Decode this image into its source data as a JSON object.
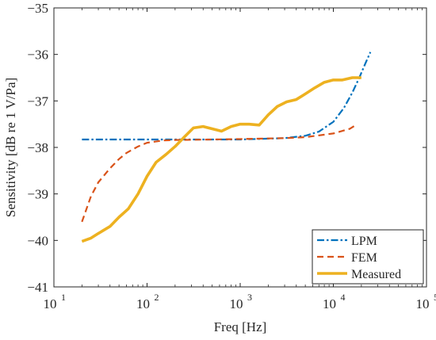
{
  "chart_data": {
    "type": "line",
    "xlabel": "Freq [Hz]",
    "ylabel": "Sensitivity [dB re 1 V/Pa]",
    "xscale": "log",
    "xlim": [
      10,
      100000
    ],
    "ylim": [
      -41,
      -35
    ],
    "x_ticks": [
      {
        "value": 10,
        "base": "10",
        "exp": "1"
      },
      {
        "value": 100,
        "base": "10",
        "exp": "2"
      },
      {
        "value": 1000,
        "base": "10",
        "exp": "3"
      },
      {
        "value": 10000,
        "base": "10",
        "exp": "4"
      },
      {
        "value": 100000,
        "base": "10",
        "exp": "5"
      }
    ],
    "y_ticks": [
      {
        "value": -41,
        "label": "−41"
      },
      {
        "value": -40,
        "label": "−40"
      },
      {
        "value": -39,
        "label": "−39"
      },
      {
        "value": -38,
        "label": "−38"
      },
      {
        "value": -37,
        "label": "−37"
      },
      {
        "value": -36,
        "label": "−36"
      },
      {
        "value": -35,
        "label": "−35"
      }
    ],
    "grid": false,
    "legend_position": "bottom-right",
    "series": [
      {
        "name": "LPM",
        "color": "#0072BD",
        "style": "dashdot",
        "x": [
          20,
          100,
          1000,
          3000,
          5000,
          7000,
          10000,
          13000,
          16000,
          19000,
          22000,
          25000
        ],
        "y": [
          -37.83,
          -37.83,
          -37.83,
          -37.8,
          -37.75,
          -37.66,
          -37.45,
          -37.15,
          -36.82,
          -36.5,
          -36.2,
          -35.95
        ]
      },
      {
        "name": "FEM",
        "color": "#D95319",
        "style": "dashed",
        "x": [
          20,
          25,
          30,
          40,
          50,
          60,
          80,
          100,
          150,
          200,
          500,
          1000,
          3000,
          5000,
          10000,
          15000,
          18000
        ],
        "y": [
          -39.6,
          -39.05,
          -38.75,
          -38.45,
          -38.25,
          -38.12,
          -37.98,
          -37.9,
          -37.85,
          -37.84,
          -37.83,
          -37.82,
          -37.8,
          -37.78,
          -37.7,
          -37.6,
          -37.5
        ]
      },
      {
        "name": "Measured",
        "color": "#EDB120",
        "style": "solid",
        "x": [
          20,
          25,
          30,
          40,
          50,
          63,
          80,
          100,
          125,
          160,
          200,
          250,
          315,
          400,
          500,
          630,
          800,
          1000,
          1250,
          1600,
          2000,
          2500,
          3150,
          4000,
          5000,
          6300,
          8000,
          10000,
          12500,
          16000,
          20000
        ],
        "y": [
          -40.02,
          -39.95,
          -39.85,
          -39.7,
          -39.5,
          -39.32,
          -39.0,
          -38.62,
          -38.32,
          -38.15,
          -37.98,
          -37.78,
          -37.58,
          -37.55,
          -37.6,
          -37.65,
          -37.55,
          -37.5,
          -37.5,
          -37.52,
          -37.3,
          -37.12,
          -37.02,
          -36.97,
          -36.85,
          -36.72,
          -36.6,
          -36.55,
          -36.55,
          -36.5,
          -36.5
        ]
      }
    ]
  }
}
